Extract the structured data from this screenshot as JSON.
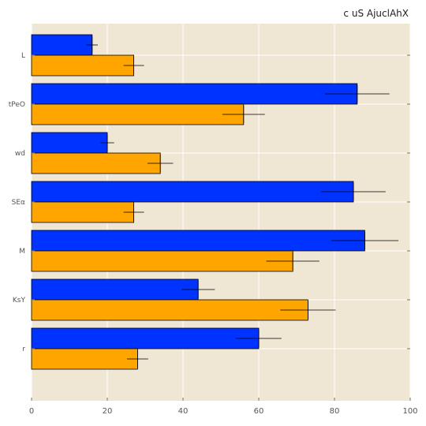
{
  "chart_data": {
    "type": "bar",
    "orientation": "horizontal",
    "title": "c uS AjuclAhX",
    "xlabel": "",
    "ylabel": "",
    "xlim": [
      0,
      100
    ],
    "x_ticks": [
      0,
      20,
      40,
      60,
      80,
      100
    ],
    "grid": true,
    "legend": "none",
    "background": "#efe6d4",
    "categories": [
      "L",
      "tPeO",
      "wd",
      "SEα",
      "M",
      "KsY",
      "r"
    ],
    "series": [
      {
        "color": "#0033ff",
        "values": [
          16,
          86,
          20,
          85,
          88,
          44,
          60
        ],
        "errors": [
          1.5,
          8.5,
          1.8,
          8.5,
          8.9,
          4.4,
          6.0
        ]
      },
      {
        "color": "#ffa500",
        "values": [
          27,
          56,
          34,
          27,
          69,
          73,
          28
        ],
        "errors": [
          2.7,
          5.6,
          3.4,
          2.7,
          7.0,
          7.3,
          2.8
        ]
      }
    ]
  }
}
